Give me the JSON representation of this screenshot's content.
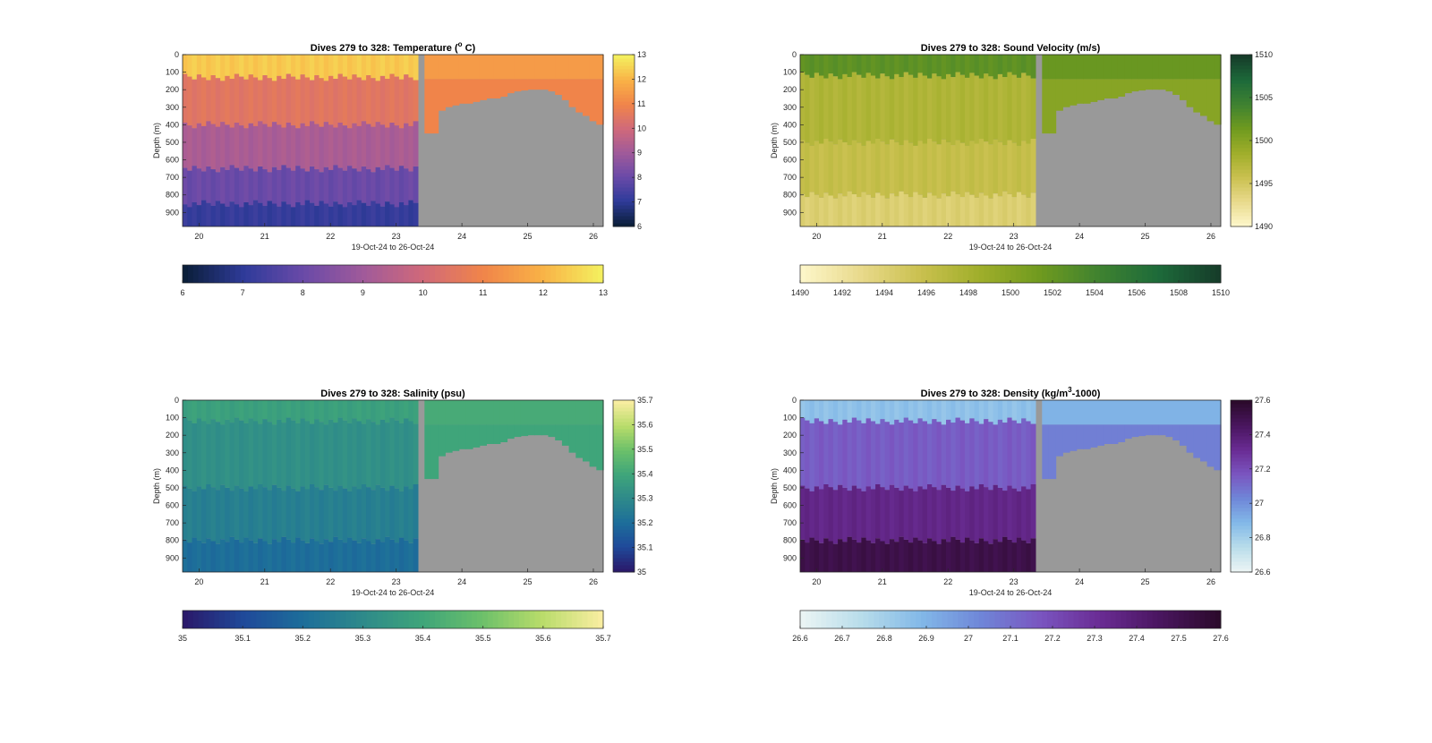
{
  "chart_data": [
    {
      "type": "heatmap",
      "title": "Dives 279 to 328: Temperature (",
      "title_sup": "o",
      "title_tail": " C)",
      "ylabel": "Depth (m)",
      "xlabel": "19-Oct-24 to 26-Oct-24",
      "x_ticks": [
        "20",
        "21",
        "22",
        "23",
        "24",
        "25",
        "26"
      ],
      "y_ticks": [
        "0",
        "100",
        "200",
        "300",
        "400",
        "500",
        "600",
        "700",
        "800",
        "900"
      ],
      "xlim_days": [
        19.75,
        26.15
      ],
      "ylim_m": [
        0,
        980
      ],
      "colormap": [
        "#0b1f3a",
        "#2f3b9a",
        "#6a4aa8",
        "#a05a9a",
        "#d0697a",
        "#f0844a",
        "#f9b146",
        "#f4ee5e"
      ],
      "c_range": [
        6,
        13
      ],
      "colorbar_ticks": [
        "6",
        "7",
        "8",
        "9",
        "10",
        "11",
        "12",
        "13"
      ],
      "horizontal_colorbar_ticks": [
        "6",
        "7",
        "8",
        "9",
        "10",
        "11",
        "12",
        "13"
      ],
      "no_data_color": "#999999",
      "layers": [
        {
          "depth_to_m": 130,
          "value": 12.4
        },
        {
          "depth_to_m": 400,
          "value": 10.5
        },
        {
          "depth_to_m": 650,
          "value": 9.2
        },
        {
          "depth_to_m": 850,
          "value": 8.0
        },
        {
          "depth_to_m": 980,
          "value": 7.1
        }
      ],
      "shallow_layers_after_gap": [
        {
          "depth_to_m": 140,
          "value": 11.5
        },
        {
          "depth_to_m": 980,
          "value": 11.0
        }
      ]
    },
    {
      "type": "heatmap",
      "title": "Dives 279 to 328: Sound Velocity (m/s)",
      "ylabel": "Depth (m)",
      "xlabel": "19-Oct-24 to 26-Oct-24",
      "x_ticks": [
        "20",
        "21",
        "22",
        "23",
        "24",
        "25",
        "26"
      ],
      "y_ticks": [
        "0",
        "100",
        "200",
        "300",
        "400",
        "500",
        "600",
        "700",
        "800",
        "900"
      ],
      "xlim_days": [
        19.75,
        26.15
      ],
      "ylim_m": [
        0,
        980
      ],
      "colormap": [
        "#fdf6c8",
        "#e8d98a",
        "#c9c04e",
        "#9fae2a",
        "#6f9a1f",
        "#3f8230",
        "#1d6a3a",
        "#163d2a"
      ],
      "c_range": [
        1490,
        1510
      ],
      "colorbar_ticks": [
        "1490",
        "1495",
        "1500",
        "1505",
        "1510"
      ],
      "horizontal_colorbar_ticks": [
        "1490",
        "1492",
        "1494",
        "1496",
        "1498",
        "1500",
        "1502",
        "1504",
        "1506",
        "1508",
        "1510"
      ],
      "no_data_color": "#999999",
      "layers": [
        {
          "depth_to_m": 120,
          "value": 1502.5
        },
        {
          "depth_to_m": 500,
          "value": 1497.5
        },
        {
          "depth_to_m": 800,
          "value": 1496.0
        },
        {
          "depth_to_m": 980,
          "value": 1494.0
        }
      ],
      "shallow_layers_after_gap": [
        {
          "depth_to_m": 140,
          "value": 1501.8
        },
        {
          "depth_to_m": 980,
          "value": 1500.0
        }
      ]
    },
    {
      "type": "heatmap",
      "title": "Dives 279 to 328: Salinity (psu)",
      "ylabel": "Depth (m)",
      "xlabel": "19-Oct-24 to 26-Oct-24",
      "x_ticks": [
        "20",
        "21",
        "22",
        "23",
        "24",
        "25",
        "26"
      ],
      "y_ticks": [
        "0",
        "100",
        "200",
        "300",
        "400",
        "500",
        "600",
        "700",
        "800",
        "900"
      ],
      "xlim_days": [
        19.75,
        26.15
      ],
      "ylim_m": [
        0,
        980
      ],
      "colormap": [
        "#2a1a6b",
        "#1f4a9a",
        "#1d6e9a",
        "#2e8a8a",
        "#3fa57a",
        "#6cc06a",
        "#b8dc6a",
        "#f8eda0"
      ],
      "c_range": [
        35,
        35.7
      ],
      "colorbar_ticks": [
        "35",
        "35.1",
        "35.2",
        "35.3",
        "35.4",
        "35.5",
        "35.6",
        "35.7"
      ],
      "horizontal_colorbar_ticks": [
        "35",
        "35.1",
        "35.2",
        "35.3",
        "35.4",
        "35.5",
        "35.6",
        "35.7"
      ],
      "no_data_color": "#999999",
      "layers": [
        {
          "depth_to_m": 120,
          "value": 35.38
        },
        {
          "depth_to_m": 500,
          "value": 35.32
        },
        {
          "depth_to_m": 800,
          "value": 35.26
        },
        {
          "depth_to_m": 980,
          "value": 35.2
        }
      ],
      "shallow_layers_after_gap": [
        {
          "depth_to_m": 140,
          "value": 35.42
        },
        {
          "depth_to_m": 980,
          "value": 35.4
        }
      ]
    },
    {
      "type": "heatmap",
      "title": "Dives 279 to 328: Density (kg/m",
      "title_sup": "3",
      "title_tail": "-1000)",
      "ylabel": "Depth (m)",
      "xlabel": "19-Oct-24 to 26-Oct-24",
      "x_ticks": [
        "20",
        "21",
        "22",
        "23",
        "24",
        "25",
        "26"
      ],
      "y_ticks": [
        "0",
        "100",
        "200",
        "300",
        "400",
        "500",
        "600",
        "700",
        "800",
        "900"
      ],
      "xlim_days": [
        19.75,
        26.15
      ],
      "ylim_m": [
        0,
        980
      ],
      "colormap": [
        "#eaf4f4",
        "#b7dcea",
        "#82b8e8",
        "#6f86d8",
        "#7a55c0",
        "#6a2c94",
        "#4a1660",
        "#2c0a2c"
      ],
      "c_range": [
        26.6,
        27.6
      ],
      "colorbar_ticks": [
        "26.6",
        "26.8",
        "27",
        "27.2",
        "27.4",
        "27.6"
      ],
      "horizontal_colorbar_ticks": [
        "26.6",
        "26.7",
        "26.8",
        "26.9",
        "27",
        "27.1",
        "27.2",
        "27.3",
        "27.4",
        "27.5",
        "27.6"
      ],
      "no_data_color": "#999999",
      "layers": [
        {
          "depth_to_m": 120,
          "value": 26.85
        },
        {
          "depth_to_m": 500,
          "value": 27.15
        },
        {
          "depth_to_m": 800,
          "value": 27.35
        },
        {
          "depth_to_m": 980,
          "value": 27.52
        }
      ],
      "shallow_layers_after_gap": [
        {
          "depth_to_m": 140,
          "value": 26.9
        },
        {
          "depth_to_m": 980,
          "value": 27.05
        }
      ]
    }
  ]
}
